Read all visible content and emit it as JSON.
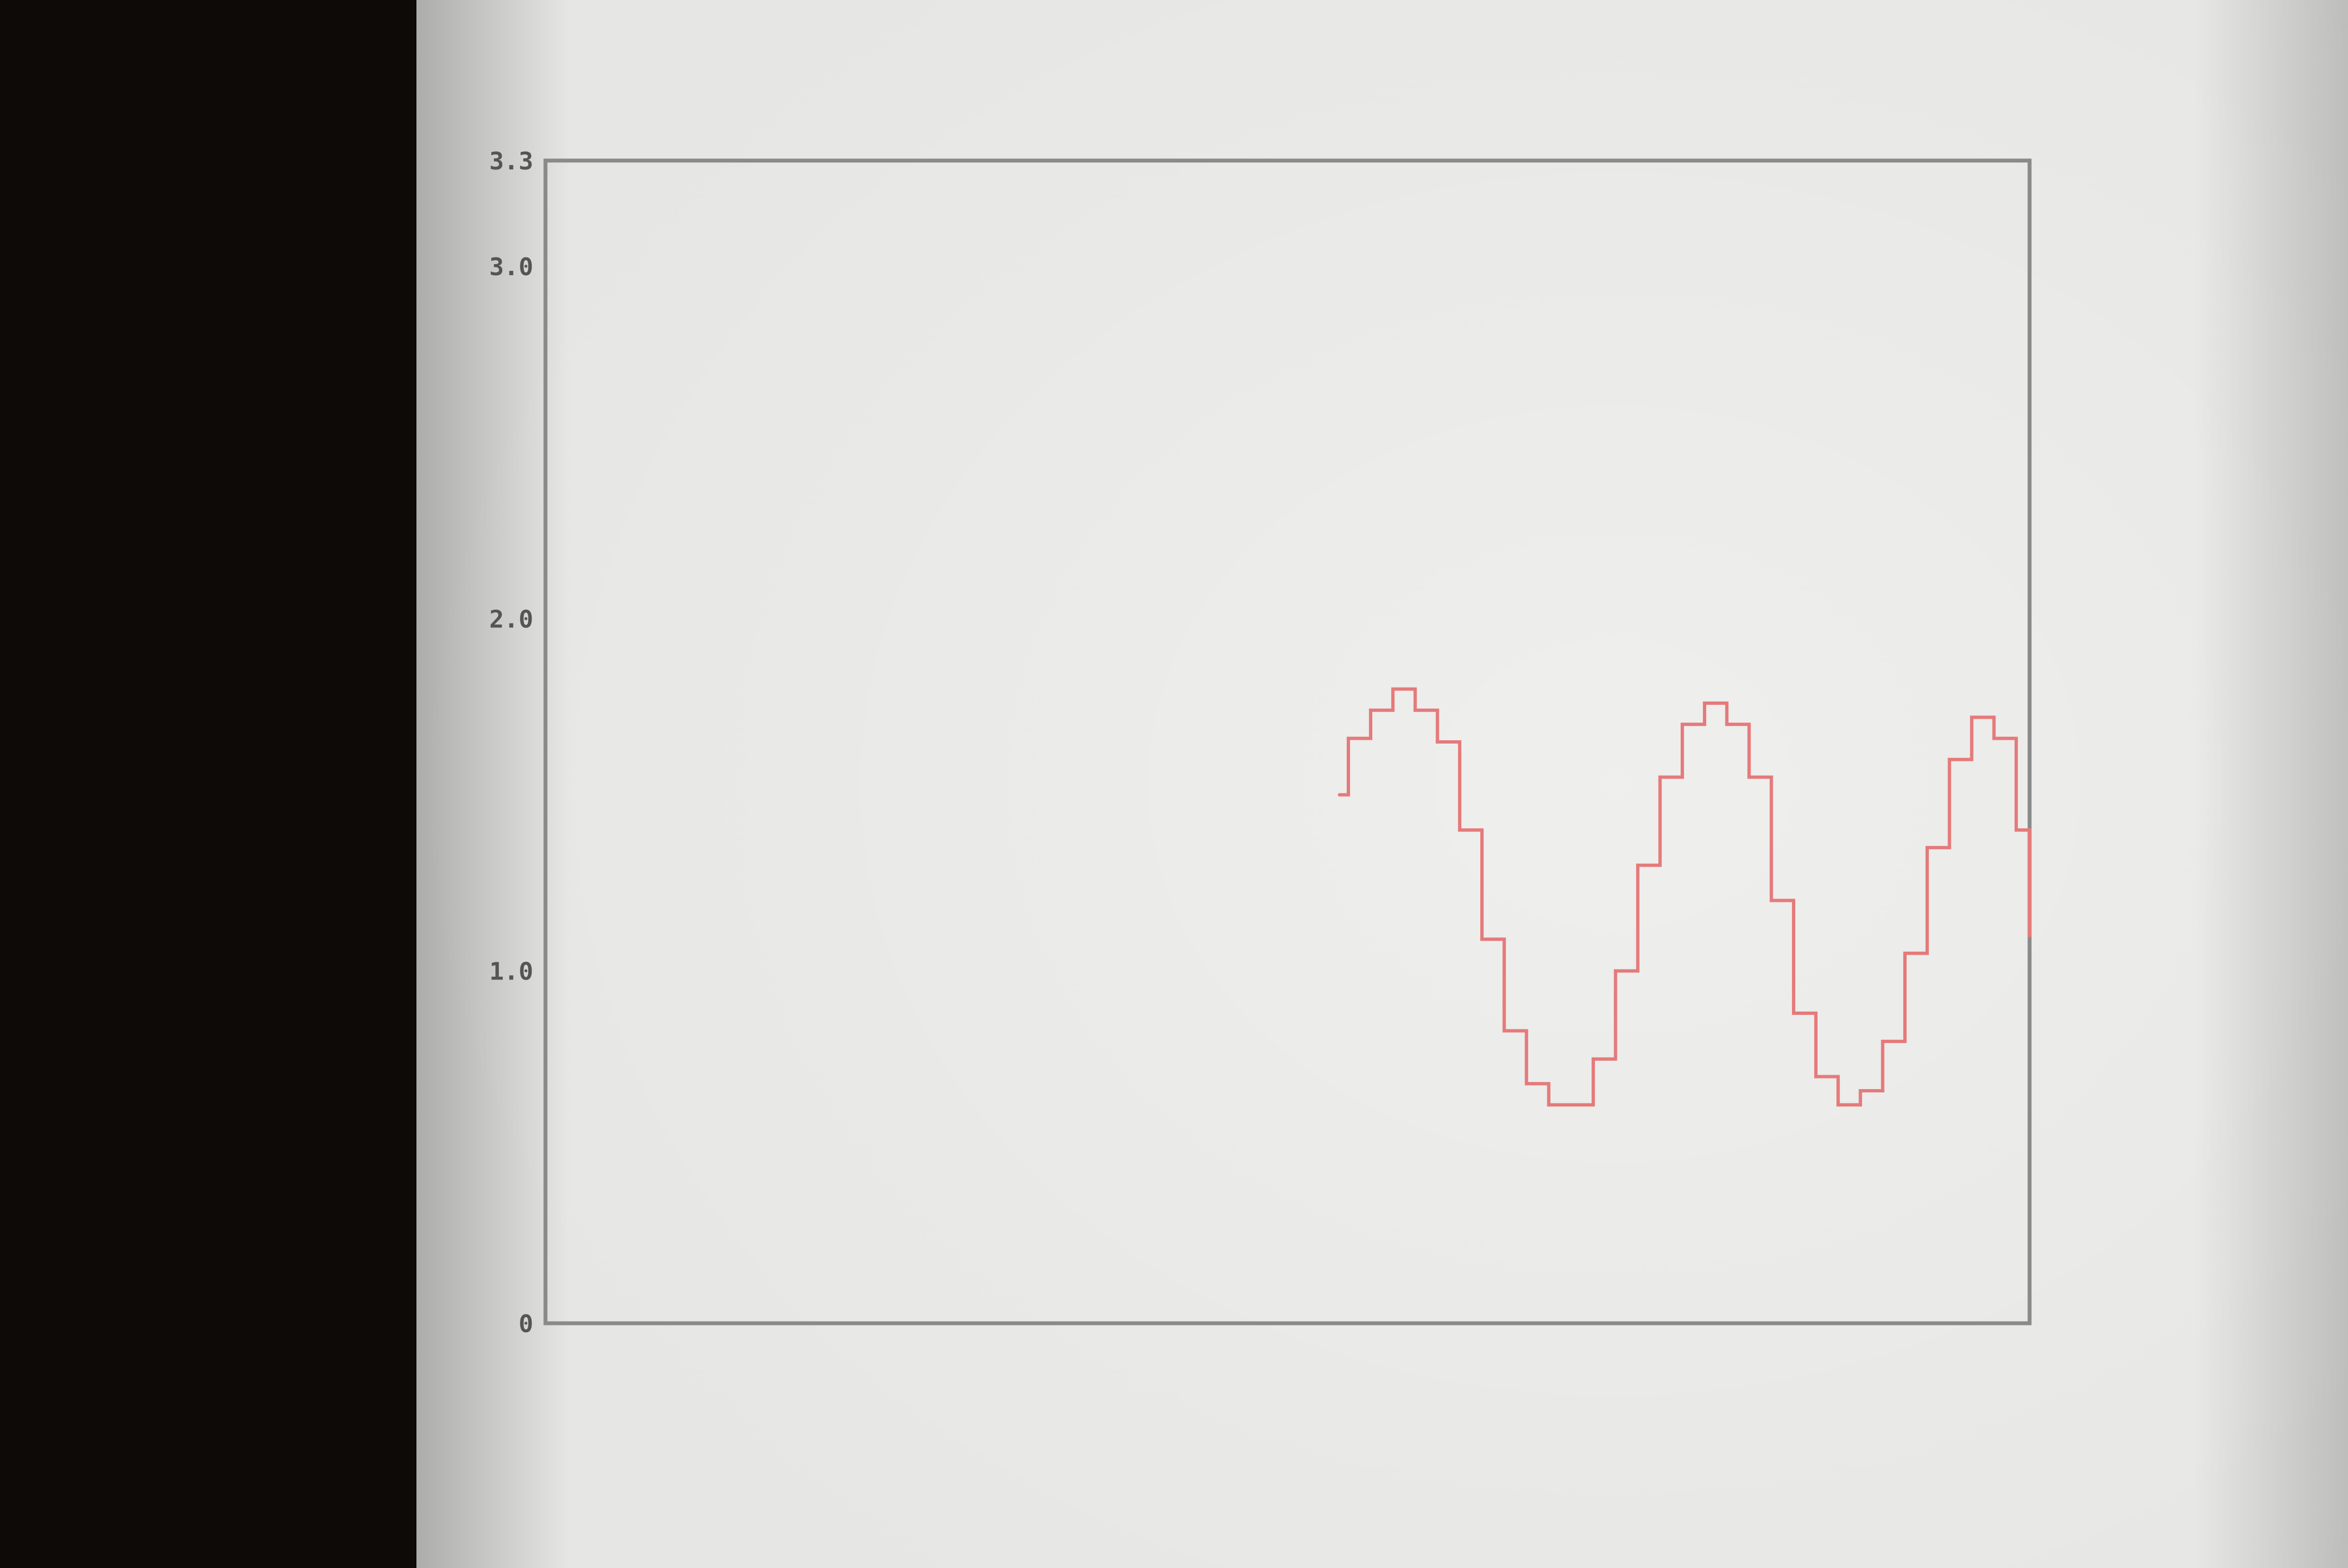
{
  "screen": {
    "background": "#e6e6e4",
    "bezel": "#0e0a08"
  },
  "chart_data": {
    "type": "line",
    "step": true,
    "title": "",
    "xlabel": "",
    "ylabel": "",
    "ylim": [
      0,
      3.3
    ],
    "xlim": [
      0,
      100
    ],
    "yticks": [
      {
        "value": 0,
        "label": "0"
      },
      {
        "value": 1.0,
        "label": "1.0"
      },
      {
        "value": 2.0,
        "label": "2.0"
      },
      {
        "value": 3.0,
        "label": "3.0"
      },
      {
        "value": 3.3,
        "label": "3.3"
      }
    ],
    "grid": false,
    "line_color": "#e57a7a",
    "frame_color": "#8a8a8a",
    "series": [
      {
        "x": [
          53.5,
          54.1,
          55.6,
          57.1,
          58.6,
          60.1,
          61.6,
          63.1,
          64.6,
          66.1,
          67.6,
          69.1,
          70.6,
          72.1,
          73.6,
          75.1,
          76.6,
          78.1,
          79.6,
          81.1,
          82.6,
          84.1,
          85.6,
          87.1,
          88.6,
          90.1,
          91.6,
          93.1,
          94.6,
          96.1,
          97.6,
          99.1,
          100.0
        ],
        "y": [
          1.5,
          1.66,
          1.74,
          1.8,
          1.74,
          1.65,
          1.4,
          1.09,
          0.83,
          0.68,
          0.62,
          0.62,
          0.75,
          1.0,
          1.3,
          1.55,
          1.7,
          1.76,
          1.7,
          1.55,
          1.2,
          0.88,
          0.7,
          0.62,
          0.66,
          0.8,
          1.05,
          1.35,
          1.6,
          1.72,
          1.66,
          1.4,
          1.1
        ]
      }
    ]
  }
}
